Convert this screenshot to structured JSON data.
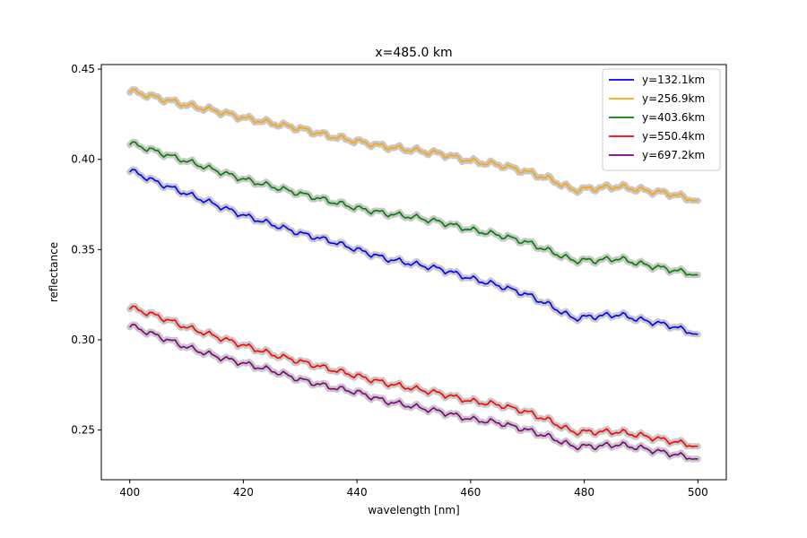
{
  "chart_data": {
    "type": "line",
    "title": "x=485.0 km",
    "xlabel": "wavelength [nm]",
    "ylabel": "reflectance",
    "xlim": [
      395,
      505
    ],
    "ylim": [
      0.2225,
      0.4525
    ],
    "xticks": [
      400,
      420,
      440,
      460,
      480,
      500
    ],
    "xtick_labels": [
      "400",
      "420",
      "440",
      "460",
      "480",
      "500"
    ],
    "yticks": [
      0.25,
      0.3,
      0.35,
      0.4,
      0.45
    ],
    "ytick_labels": [
      "0.25",
      "0.30",
      "0.35",
      "0.40",
      "0.45"
    ],
    "grid": false,
    "legend_position": "top-right",
    "band_color": "#c8c8c8",
    "x": [
      400,
      405,
      410,
      415,
      420,
      425,
      430,
      435,
      440,
      445,
      450,
      455,
      460,
      465,
      470,
      474,
      478,
      482,
      486,
      490,
      495,
      500
    ],
    "series": [
      {
        "name": "y=132.1km",
        "color": "#0000ff",
        "values": [
          0.394,
          0.387,
          0.381,
          0.375,
          0.369,
          0.364,
          0.359,
          0.355,
          0.35,
          0.345,
          0.342,
          0.339,
          0.334,
          0.33,
          0.325,
          0.319,
          0.312,
          0.313,
          0.314,
          0.311,
          0.308,
          0.303
        ]
      },
      {
        "name": "y=256.9km",
        "color": "#ffa500",
        "values": [
          0.438,
          0.434,
          0.43,
          0.427,
          0.423,
          0.42,
          0.417,
          0.413,
          0.41,
          0.407,
          0.405,
          0.403,
          0.399,
          0.397,
          0.393,
          0.389,
          0.383,
          0.384,
          0.385,
          0.383,
          0.381,
          0.377
        ]
      },
      {
        "name": "y=403.6km",
        "color": "#008000",
        "values": [
          0.409,
          0.404,
          0.399,
          0.394,
          0.389,
          0.385,
          0.381,
          0.377,
          0.373,
          0.37,
          0.368,
          0.365,
          0.361,
          0.358,
          0.354,
          0.349,
          0.344,
          0.344,
          0.345,
          0.342,
          0.339,
          0.336
        ]
      },
      {
        "name": "y=550.4km",
        "color": "#ff0000",
        "values": [
          0.318,
          0.313,
          0.307,
          0.302,
          0.297,
          0.292,
          0.288,
          0.284,
          0.28,
          0.276,
          0.273,
          0.27,
          0.266,
          0.264,
          0.26,
          0.255,
          0.249,
          0.249,
          0.249,
          0.247,
          0.244,
          0.241
        ]
      },
      {
        "name": "y=697.2km",
        "color": "#800080",
        "values": [
          0.308,
          0.302,
          0.296,
          0.291,
          0.287,
          0.283,
          0.278,
          0.274,
          0.271,
          0.266,
          0.263,
          0.26,
          0.256,
          0.254,
          0.25,
          0.246,
          0.241,
          0.241,
          0.242,
          0.24,
          0.237,
          0.234
        ]
      }
    ]
  }
}
